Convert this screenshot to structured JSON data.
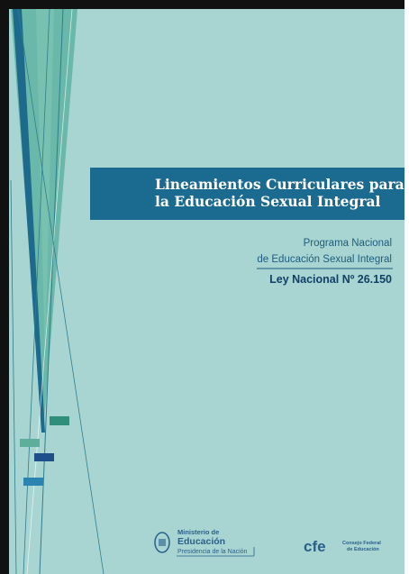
{
  "title": {
    "line1": "Lineamientos Curriculares para",
    "line2": "la Educación Sexual Integral"
  },
  "program": {
    "line1": "Programa Nacional",
    "line2": "de Educación Sexual Integral"
  },
  "law": "Ley Nacional Nº 26.150",
  "logos": {
    "ministry": {
      "line1": "Ministerio de",
      "line2": "Educación",
      "line3": "Presidencia de la Nación"
    },
    "cfe": {
      "mark": "cfe",
      "line1": "Consejo Federal",
      "line2": "de Educación"
    }
  }
}
